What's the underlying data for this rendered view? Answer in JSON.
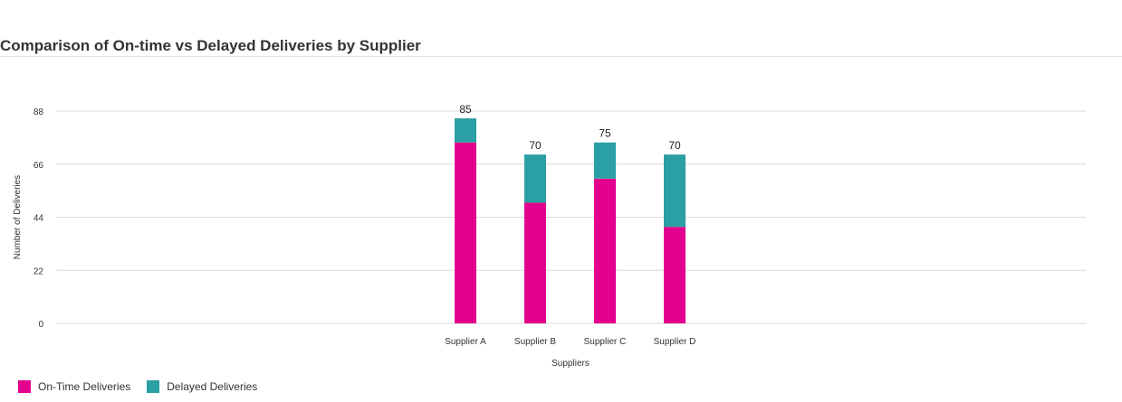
{
  "chart_data": {
    "type": "bar",
    "stacked": true,
    "title": "Comparison of On-time vs Delayed Deliveries by Supplier",
    "xlabel": "Suppliers",
    "ylabel": "Number of Deliveries",
    "categories": [
      "Supplier A",
      "Supplier B",
      "Supplier C",
      "Supplier D"
    ],
    "series": [
      {
        "name": "On-Time Deliveries",
        "color": "#e3008c",
        "values": [
          75,
          50,
          60,
          40
        ]
      },
      {
        "name": "Delayed Deliveries",
        "color": "#2aa0a4",
        "values": [
          10,
          20,
          15,
          30
        ]
      }
    ],
    "totals": [
      85,
      70,
      75,
      70
    ],
    "ylim": [
      0,
      88
    ],
    "yticks": [
      0,
      22,
      44,
      66,
      88
    ],
    "grid": true,
    "legend_position": "bottom-left"
  }
}
